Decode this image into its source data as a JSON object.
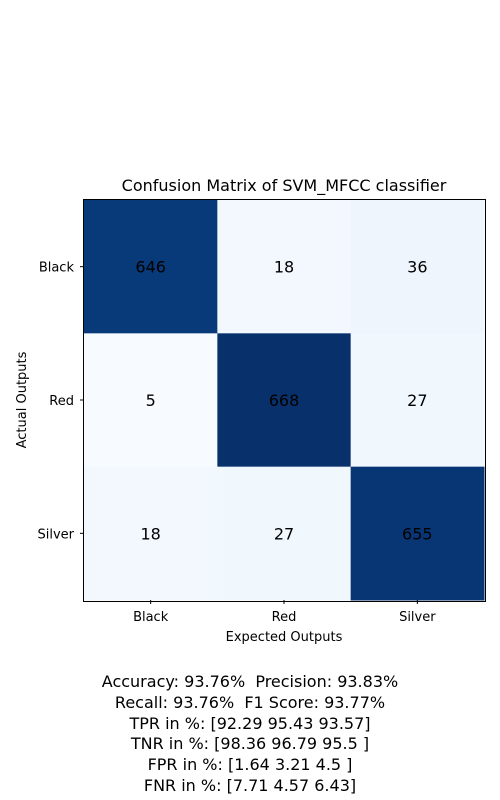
{
  "chart_data": {
    "type": "heatmap",
    "title": "Confusion Matrix of SVM_MFCC classifier",
    "xlabel": "Expected Outputs",
    "ylabel": "Actual Outputs",
    "x_categories": [
      "Black",
      "Red",
      "Silver"
    ],
    "y_categories": [
      "Black",
      "Red",
      "Silver"
    ],
    "values": [
      [
        646,
        18,
        36
      ],
      [
        5,
        668,
        27
      ],
      [
        18,
        27,
        655
      ]
    ],
    "colormap": "Blues",
    "colors": {
      "high": "#08306b",
      "low": "#f7fbff"
    }
  },
  "metrics": [
    "Accuracy: 93.76%  Precision: 93.83%",
    "Recall: 93.76%  F1 Score: 93.77%",
    "TPR in %: [92.29 95.43 93.57]",
    "TNR in %: [98.36 96.79 95.5 ]",
    "FPR in %: [1.64 3.21 4.5 ]",
    "FNR in %: [7.71 4.57 6.43]"
  ]
}
